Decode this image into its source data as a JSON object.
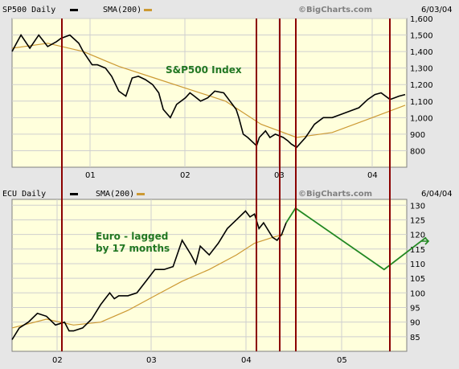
{
  "chart_data": [
    {
      "type": "line",
      "header": {
        "title": "SP500 Daily",
        "sma_label": "SMA(200)",
        "brand": "©BigCharts.com",
        "date": "6/03/04"
      },
      "annotation": "S&P500 Index",
      "x_ticks": [
        "01",
        "02",
        "03",
        "04"
      ],
      "y_ticks": [
        "800",
        "900",
        "1,000",
        "1,100",
        "1,200",
        "1,300",
        "1,400",
        "1,500",
        "1,600"
      ],
      "ylim": [
        700,
        1600
      ],
      "grid": true,
      "series": [
        {
          "name": "SP500 Daily",
          "color": "#000000",
          "x": [
            2000.0,
            2000.05,
            2000.1,
            2000.2,
            2000.3,
            2000.4,
            2000.5,
            2000.55,
            2000.65,
            2000.75,
            2000.8,
            2000.9,
            2000.96,
            2001.05,
            2001.12,
            2001.2,
            2001.28,
            2001.35,
            2001.42,
            2001.5,
            2001.58,
            2001.65,
            2001.7,
            2001.78,
            2001.85,
            2001.95,
            2002.0,
            2002.05,
            2002.12,
            2002.2,
            2002.28,
            2002.38,
            2002.45,
            2002.52,
            2002.55,
            2002.6,
            2002.65,
            2002.75,
            2002.78,
            2002.85,
            2002.9,
            2002.96,
            2003.05,
            2003.1,
            2003.14,
            2003.2,
            2003.3,
            2003.4,
            2003.5,
            2003.6,
            2003.7,
            2003.8,
            2003.9,
            2004.0,
            2004.08,
            2004.15,
            2004.25,
            2004.3,
            2004.35,
            2004.42
          ],
          "y": [
            1400,
            1450,
            1500,
            1420,
            1500,
            1430,
            1460,
            1480,
            1500,
            1450,
            1400,
            1320,
            1320,
            1300,
            1250,
            1160,
            1130,
            1240,
            1250,
            1230,
            1200,
            1150,
            1050,
            1000,
            1080,
            1120,
            1150,
            1130,
            1100,
            1120,
            1160,
            1150,
            1100,
            1050,
            1000,
            900,
            880,
            830,
            880,
            920,
            880,
            900,
            880,
            860,
            840,
            820,
            880,
            960,
            1000,
            1000,
            1020,
            1040,
            1060,
            1110,
            1140,
            1150,
            1110,
            1120,
            1130,
            1140
          ]
        },
        {
          "name": "SMA(200)",
          "color": "#cc9933",
          "x": [
            2000.0,
            2000.4,
            2000.8,
            2001.2,
            2001.6,
            2002.0,
            2002.4,
            2002.8,
            2003.2,
            2003.6,
            2004.0,
            2004.42
          ],
          "y": [
            1420,
            1450,
            1400,
            1310,
            1240,
            1170,
            1100,
            960,
            880,
            910,
            990,
            1075
          ]
        }
      ]
    },
    {
      "type": "line",
      "header": {
        "title": "ECU Daily",
        "sma_label": "SMA(200)",
        "brand": "©BigCharts.com",
        "date": "6/04/04"
      },
      "annotation": [
        "Euro - lagged",
        "by 17 months"
      ],
      "x_ticks": [
        "02",
        "03",
        "04",
        "05"
      ],
      "y_ticks": [
        "85",
        "90",
        "95",
        "100",
        "105",
        "110",
        "115",
        "120",
        "125",
        "130"
      ],
      "ylim": [
        80,
        132
      ],
      "grid": true,
      "series": [
        {
          "name": "ECU Daily",
          "color": "#000000",
          "x": [
            2001.42,
            2001.5,
            2001.6,
            2001.7,
            2001.8,
            2001.9,
            2002.0,
            2002.05,
            2002.1,
            2002.2,
            2002.3,
            2002.4,
            2002.5,
            2002.55,
            2002.6,
            2002.7,
            2002.8,
            2002.9,
            2003.0,
            2003.1,
            2003.2,
            2003.3,
            2003.4,
            2003.45,
            2003.5,
            2003.6,
            2003.7,
            2003.8,
            2003.9,
            2004.0,
            2004.05,
            2004.1,
            2004.15,
            2004.2,
            2004.3,
            2004.35,
            2004.4,
            2004.45
          ],
          "y": [
            84,
            88,
            90,
            93,
            92,
            89,
            90,
            87,
            87,
            88,
            91,
            96,
            100,
            98,
            99,
            99,
            100,
            104,
            108,
            108,
            109,
            118,
            113,
            110,
            116,
            113,
            117,
            122,
            125,
            128,
            126,
            127,
            122,
            124,
            119,
            118,
            120,
            124
          ]
        },
        {
          "name": "SMA(200)",
          "color": "#cc9933",
          "x": [
            2001.42,
            2001.8,
            2002.1,
            2002.4,
            2002.7,
            2003.0,
            2003.3,
            2003.6,
            2003.9,
            2004.1,
            2004.3,
            2004.42
          ],
          "y": [
            88,
            91,
            89,
            90,
            94,
            99,
            104,
            108,
            113,
            117,
            119,
            120
          ]
        },
        {
          "name": "projection",
          "color": "#228822",
          "x": [
            2004.45,
            2004.55,
            2005.5,
            2005.95
          ],
          "y": [
            124,
            129,
            108,
            119
          ]
        }
      ]
    }
  ]
}
